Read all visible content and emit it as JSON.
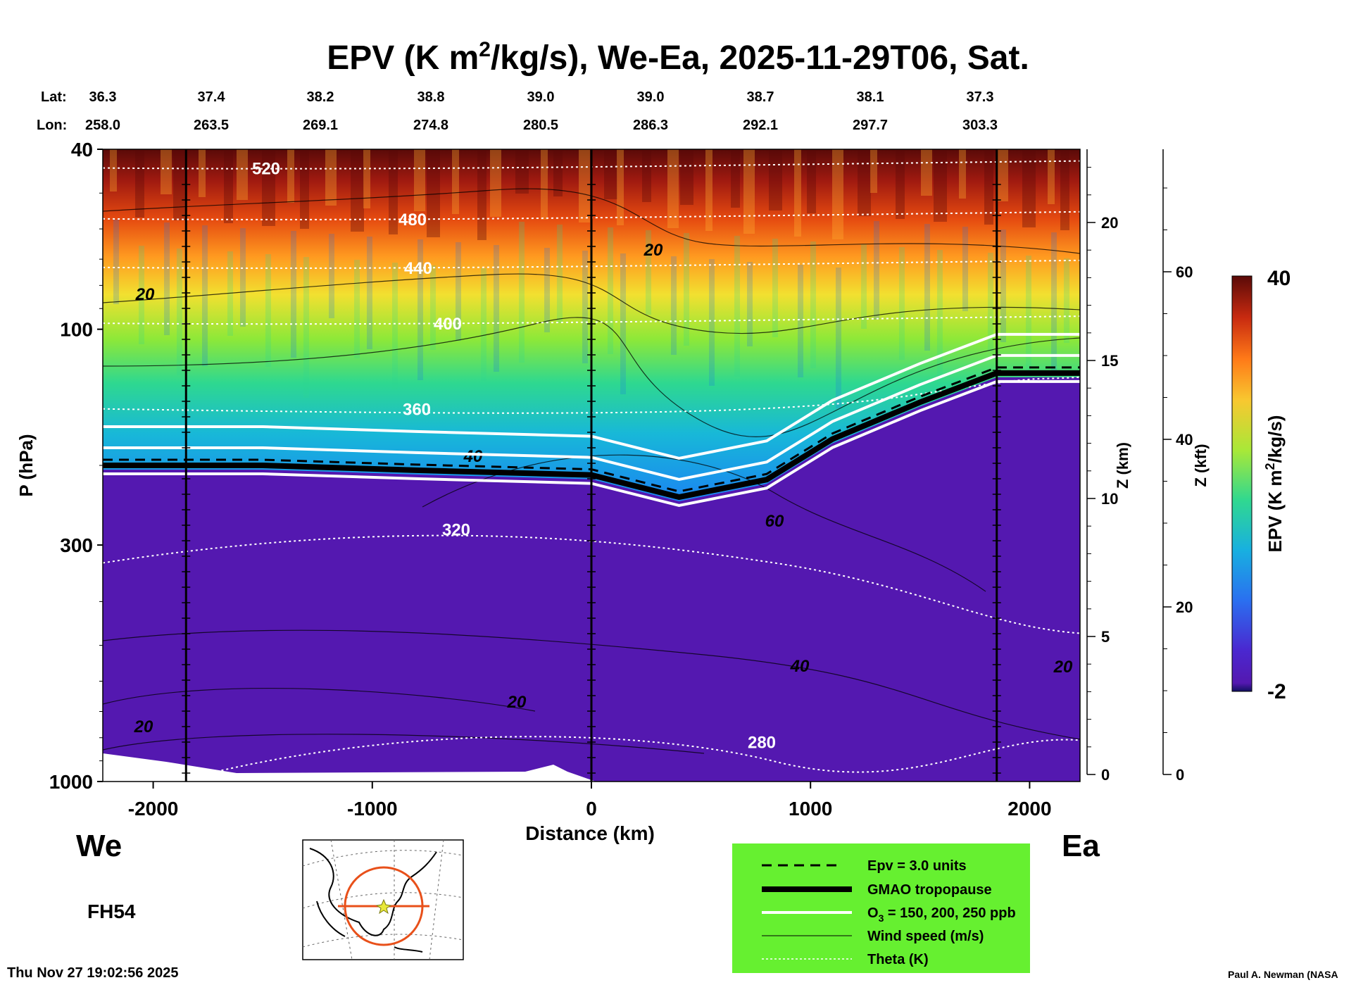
{
  "chart_data": {
    "type": "heatmap",
    "title_parts": {
      "pre": "EPV (K m",
      "sup": "2",
      "post": "/kg/s), We-Ea, 2025-11-29T06, Sat."
    },
    "lat_label": "Lat:",
    "lon_label": "Lon:",
    "lat_values": [
      "36.3",
      "37.4",
      "38.2",
      "38.8",
      "39.0",
      "39.0",
      "38.7",
      "38.1",
      "37.3"
    ],
    "lon_values": [
      "258.0",
      "263.5",
      "269.1",
      "274.8",
      "280.5",
      "286.3",
      "292.1",
      "297.7",
      "303.3"
    ],
    "xlabel": "Distance (km)",
    "xlim": [
      -2230,
      2230
    ],
    "x_ticks": [
      -2000,
      -1000,
      0,
      1000,
      2000
    ],
    "x_tick_labels": [
      "-2000",
      "-1000",
      "0",
      "1000",
      "2000"
    ],
    "ylabel": "P (hPa)",
    "y_scale": "log",
    "ylim": [
      1000,
      40
    ],
    "y_ticks": [
      40,
      100,
      300,
      1000
    ],
    "y_tick_labels": [
      "40",
      "100",
      "300",
      "1000"
    ],
    "z_km_label": "Z (km)",
    "z_km_ticks": [
      0,
      5,
      10,
      15,
      20
    ],
    "z_km_tick_labels": [
      "0",
      "5",
      "10",
      "15",
      "20"
    ],
    "z_kft_label": "Z (kft)",
    "z_kft_ticks": [
      0,
      20,
      40,
      60
    ],
    "z_kft_tick_labels": [
      "0",
      "20",
      "40",
      "60"
    ],
    "side_left": "We",
    "side_right": "Ea",
    "forecast_hour": "FH54",
    "timestamp": "Thu Nov 27 19:02:56 2025",
    "credit": "Paul A. Newman (NASA",
    "colorbar": {
      "label_parts": {
        "pre": "EPV (K m",
        "sup": "2",
        "post": "/kg/s)"
      },
      "max_label": "40",
      "min_label": "-2",
      "range": [
        -2,
        40
      ]
    },
    "theta_contours": [
      {
        "label": "520",
        "pressure": 44,
        "color": "#ffffff"
      },
      {
        "label": "480",
        "pressure": 57,
        "color": "#ffffff"
      },
      {
        "label": "440",
        "pressure": 73,
        "color": "#ffffff"
      },
      {
        "label": "400",
        "pressure": 97,
        "color": "#ffffff"
      },
      {
        "label": "360",
        "pressure": 150,
        "color": "#ffffff"
      },
      {
        "label": "320",
        "pressure": 265,
        "color": "#ffffff"
      },
      {
        "label": "280",
        "pressure": 840,
        "color": "#ffffff"
      }
    ],
    "wind_labels": [
      "20",
      "20",
      "40",
      "60",
      "40",
      "20",
      "20",
      "20"
    ],
    "tropopause_pressure": {
      "x": [
        -2230,
        -1500,
        -800,
        0,
        400,
        800,
        1100,
        1500,
        1850,
        2230
      ],
      "p": [
        200,
        200,
        205,
        210,
        235,
        215,
        175,
        145,
        125,
        125
      ]
    },
    "legend": [
      {
        "label": "Epv = 3.0 units",
        "style": "dashed"
      },
      {
        "label": "GMAO tropopause",
        "style": "thick"
      },
      {
        "label_parts": {
          "pre": "O",
          "sub": "3",
          "post": " = 150, 200, 250 ppb"
        },
        "style": "white"
      },
      {
        "label": "Wind speed (m/s)",
        "style": "thin"
      },
      {
        "label": "Theta (K)",
        "style": "dotted"
      }
    ],
    "legend_placement": "bottom-right",
    "legend_bg": "#66f030",
    "colors": {
      "stratosphere": "#8b1a10",
      "troposphere": "#5a1aa8",
      "mid": "#1e90ff",
      "tropopause": "#000000",
      "ozone": "#ffffff"
    }
  }
}
